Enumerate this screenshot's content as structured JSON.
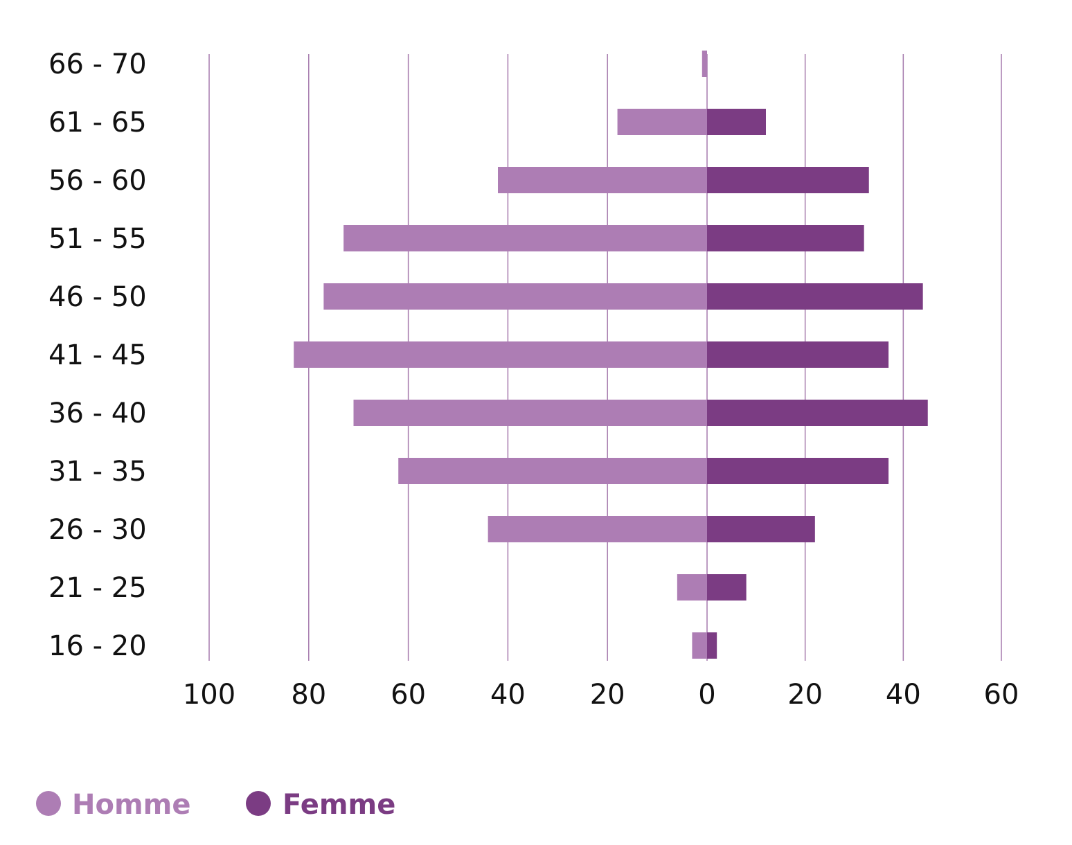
{
  "colors": {
    "homme": "#ad7db4",
    "femme": "#7b3c83",
    "grid": "#a57aad",
    "text": "#111111"
  },
  "chart_data": {
    "type": "bar",
    "orientation": "horizontal",
    "layout": "population-pyramid",
    "categories": [
      "66  -  70",
      "61   -  65",
      "56  -  60",
      "51   -  55",
      "46  -  50",
      "41   -  45",
      "36  -  40",
      "31   -  35",
      "26  -  30",
      "21   -  25",
      "16   -  20"
    ],
    "series": [
      {
        "name": "Homme",
        "side": "left",
        "values": [
          1,
          18,
          42,
          73,
          77,
          83,
          71,
          62,
          44,
          6,
          3
        ]
      },
      {
        "name": "Femme",
        "side": "right",
        "values": [
          0,
          12,
          33,
          32,
          44,
          37,
          45,
          37,
          22,
          8,
          2
        ]
      }
    ],
    "x_ticks": {
      "left": [
        100,
        80,
        60,
        40,
        20
      ],
      "center": 0,
      "right": [
        20,
        40,
        60
      ]
    },
    "x_tick_labels": [
      "100",
      "80",
      "60",
      "40",
      "20",
      "0",
      "20",
      "40",
      "60"
    ],
    "xlim_left": 100,
    "xlim_right": 60,
    "grid": true,
    "legend_position": "bottom-left",
    "title": "",
    "xlabel": "",
    "ylabel": ""
  }
}
